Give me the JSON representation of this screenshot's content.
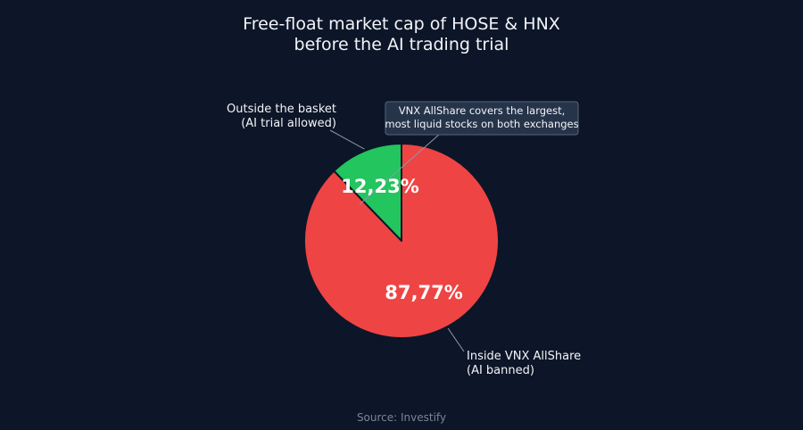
{
  "chart_data": {
    "type": "pie",
    "title_lines": [
      "Free-float market cap of HOSE & HNX",
      "before the AI trading trial"
    ],
    "slices": [
      {
        "label_lines": [
          "Outside the basket",
          "(AI trial allowed)"
        ],
        "value": 12.23,
        "display": "12,23%",
        "color": "#22c55e"
      },
      {
        "label_lines": [
          "Inside VNX AllShare",
          "(AI banned)"
        ],
        "value": 87.77,
        "display": "87,77%",
        "color": "#ef4444"
      }
    ],
    "annotation_lines": [
      "VNX AllShare covers the largest,",
      "most liquid stocks on both exchanges"
    ],
    "source": "Source: Investify",
    "colors": {
      "background": "#0d1628",
      "slice_border": "#0d1628",
      "annotation_box": "#26344a",
      "annotation_border": "#56657a",
      "leader_line": "#8e98a8",
      "source_text": "#7b8494"
    }
  }
}
